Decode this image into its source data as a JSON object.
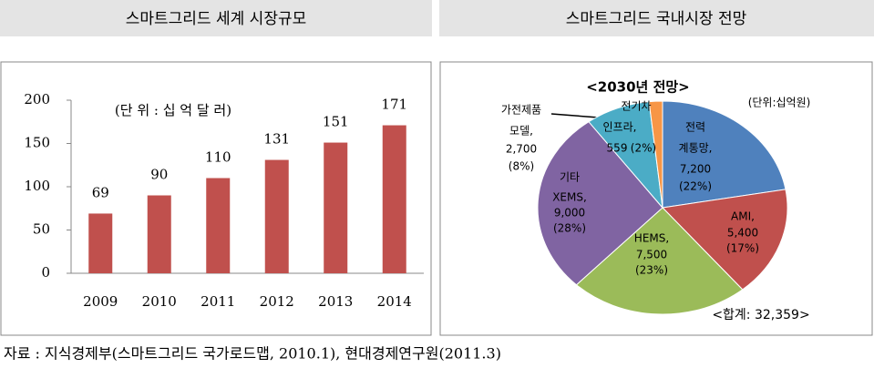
{
  "header_left": "스마트그리드 세계 시장규모",
  "header_right": "스마트그리드 국내시장 전망",
  "source": "자료 : 지식경제부(스마트그리드 국가로드맵, 2010.1), 현대경제연구원(2011.3)",
  "chart_data": [
    {
      "type": "bar",
      "annotation": "(단 위 : 십 억 달 러)",
      "categories": [
        "2009",
        "2010",
        "2011",
        "2012",
        "2013",
        "2014"
      ],
      "values": [
        69,
        90,
        110,
        131,
        151,
        171
      ],
      "color": "#c0504d",
      "ylim": [
        0,
        200
      ],
      "yticks": [
        0,
        50,
        100,
        150,
        200
      ],
      "grid": false
    },
    {
      "type": "pie",
      "title": "<2030년 전망>",
      "unit": "(단위:십억원)",
      "total_label": "<합계: 32,359>",
      "labels": [
        [
          "전력",
          "계통망,"
        ],
        [
          "AMI,"
        ],
        [
          "HEMS,"
        ],
        [
          "기타",
          "XEMS,"
        ],
        [
          "가전제품",
          "모델,"
        ],
        [
          "전기차",
          "인프라,"
        ]
      ],
      "values": [
        7200,
        5400,
        7500,
        9000,
        2700,
        559
      ],
      "value_labels": [
        "7,200",
        "5,400",
        "7,500",
        "9,000",
        "2,700",
        "559"
      ],
      "percent_labels": [
        "(22%)",
        "(17%)",
        "(23%)",
        "(28%)",
        "(8%)",
        "(2%)"
      ],
      "colors": [
        "#4f81bd",
        "#c0504d",
        "#9bbb59",
        "#8064a2",
        "#4bacc6",
        "#f79646"
      ]
    }
  ]
}
